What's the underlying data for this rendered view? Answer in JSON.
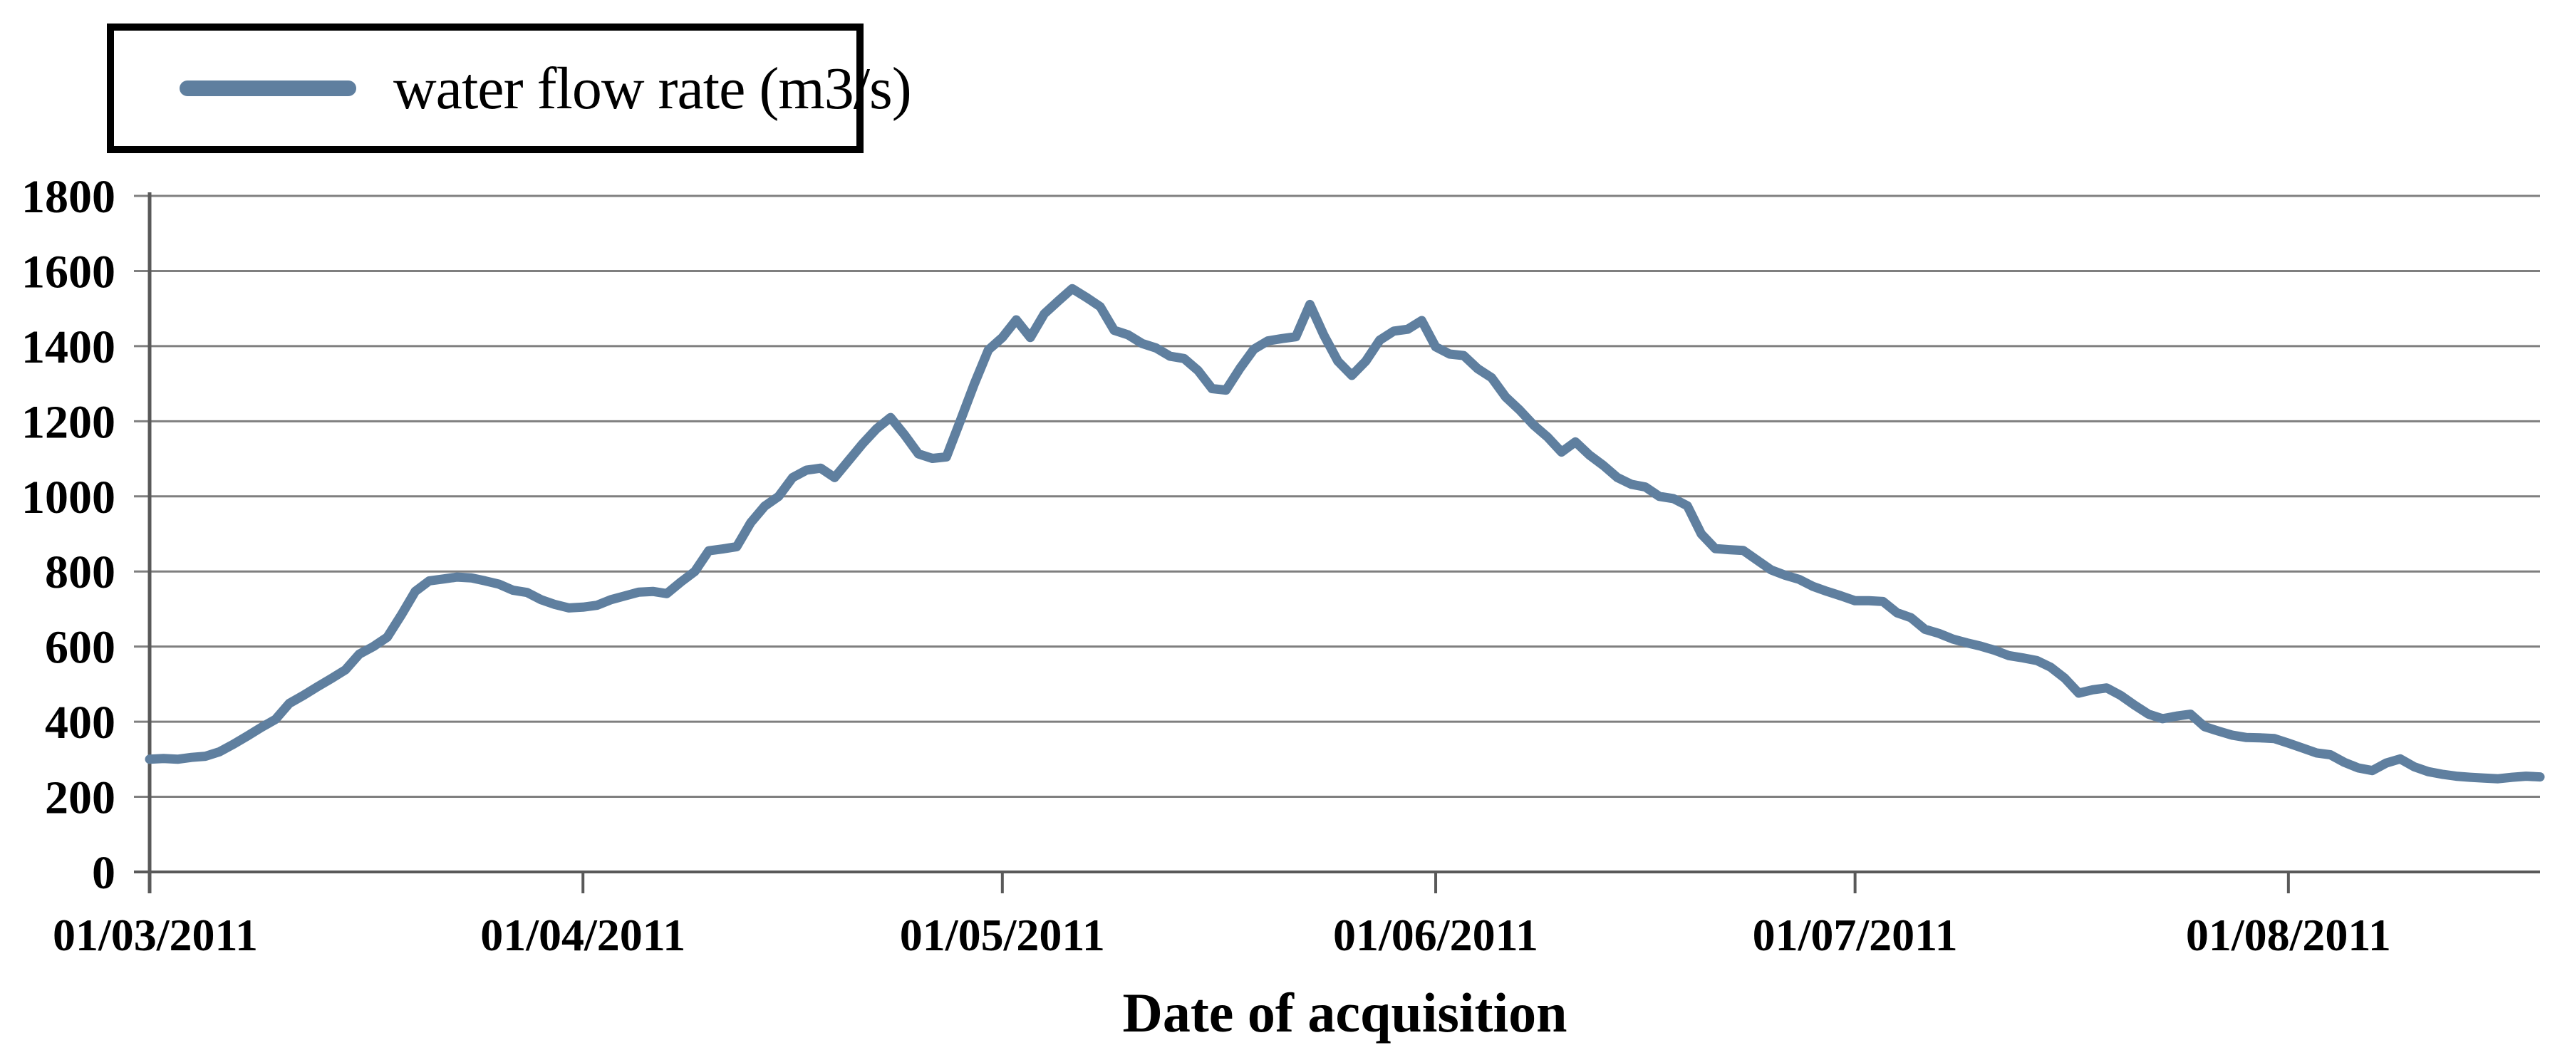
{
  "legend": {
    "label": "water flow rate (m3/s)"
  },
  "colors": {
    "line": "#5f7f9f",
    "grid": "#7f7f7f",
    "axis": "#595959",
    "text": "#000000",
    "legend_border": "#000000",
    "background": "#ffffff"
  },
  "chart_data": {
    "type": "line",
    "title": "",
    "xlabel": "Date of acquisition",
    "ylabel": "",
    "legend_entries": [
      "water flow rate (m3/s)"
    ],
    "legend_position": "top-left",
    "grid": "horizontal",
    "ylim": [
      0,
      1800
    ],
    "ytick_step": 200,
    "yticks": [
      0,
      200,
      400,
      600,
      800,
      1000,
      1200,
      1400,
      1600,
      1800
    ],
    "x_tick_labels": [
      "01/03/2011",
      "01/04/2011",
      "01/05/2011",
      "01/06/2011",
      "01/07/2011",
      "01/08/2011"
    ],
    "x_tick_day_offsets": [
      0,
      31,
      61,
      92,
      122,
      153
    ],
    "x_total_days": 171,
    "x_sampling": "daily values starting 01/03/2011",
    "series": [
      {
        "name": "water flow rate (m3/s)",
        "values": [
          300,
          302,
          300,
          305,
          308,
          320,
          340,
          362,
          385,
          406,
          449,
          470,
          493,
          515,
          538,
          580,
          600,
          625,
          684,
          747,
          775,
          780,
          785,
          783,
          775,
          766,
          750,
          744,
          725,
          712,
          703,
          705,
          710,
          725,
          735,
          745,
          747,
          741,
          772,
          800,
          855,
          860,
          866,
          930,
          974,
          1000,
          1050,
          1070,
          1075,
          1050,
          1095,
          1140,
          1180,
          1210,
          1164,
          1113,
          1101,
          1105,
          1202,
          1300,
          1390,
          1423,
          1470,
          1423,
          1486,
          1520,
          1553,
          1530,
          1505,
          1442,
          1430,
          1407,
          1395,
          1373,
          1367,
          1335,
          1287,
          1283,
          1341,
          1392,
          1414,
          1420,
          1425,
          1511,
          1429,
          1360,
          1322,
          1360,
          1416,
          1440,
          1445,
          1468,
          1398,
          1379,
          1375,
          1340,
          1316,
          1265,
          1230,
          1190,
          1158,
          1118,
          1145,
          1110,
          1082,
          1050,
          1032,
          1025,
          1000,
          994,
          975,
          900,
          861,
          858,
          856,
          830,
          804,
          790,
          779,
          760,
          747,
          735,
          722,
          722,
          720,
          690,
          677,
          646,
          635,
          620,
          610,
          601,
          590,
          576,
          570,
          563,
          545,
          516,
          476,
          485,
          490,
          470,
          444,
          420,
          408,
          415,
          420,
          387,
          375,
          364,
          358,
          357,
          355,
          343,
          330,
          317,
          312,
          292,
          277,
          270,
          290,
          301,
          280,
          267,
          260,
          255,
          252,
          250,
          248,
          252,
          255,
          253
        ]
      }
    ]
  }
}
